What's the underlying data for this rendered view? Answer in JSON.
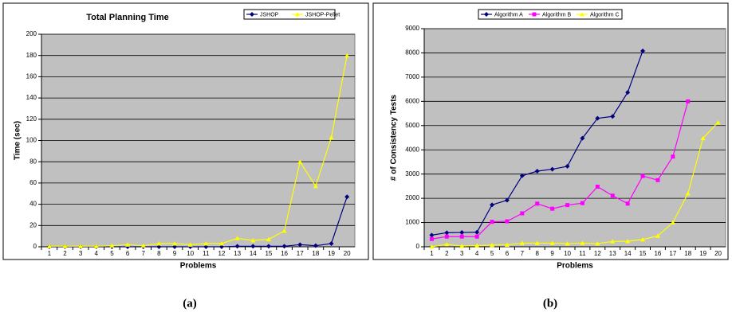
{
  "chart_data": [
    {
      "type": "line",
      "title": "Total Planning Time",
      "x_label": "Problems",
      "y_label": "Time (sec)",
      "categories": [
        "1",
        "2",
        "3",
        "4",
        "5",
        "6",
        "7",
        "8",
        "9",
        "10",
        "11",
        "12",
        "13",
        "14",
        "15",
        "16",
        "17",
        "18",
        "19",
        "20"
      ],
      "ylim": [
        0,
        200
      ],
      "yticks": [
        0,
        20,
        40,
        60,
        80,
        100,
        120,
        140,
        160,
        180,
        200
      ],
      "grid": true,
      "background": "#c0c0c0",
      "series": [
        {
          "name": "JSHOP",
          "color": "#000080",
          "marker": "diamond",
          "values": [
            0,
            0,
            0,
            0,
            0,
            0,
            0,
            0,
            0,
            0,
            0,
            0,
            0.5,
            0.5,
            0.5,
            0.5,
            2,
            1,
            3,
            47
          ]
        },
        {
          "name": "JSHOP-Pellet",
          "color": "#ffff00",
          "marker": "triangle",
          "values": [
            0.5,
            0.5,
            0.5,
            0.5,
            1,
            2,
            1,
            3,
            3,
            2,
            3,
            3,
            8,
            6,
            7,
            15,
            80,
            57,
            103,
            180
          ]
        }
      ],
      "caption": "(a)"
    },
    {
      "type": "line",
      "x_label": "Problems",
      "y_label": "# of Consistency Tests",
      "categories": [
        "1",
        "2",
        "3",
        "4",
        "5",
        "6",
        "7",
        "8",
        "9",
        "10",
        "11",
        "12",
        "13",
        "14",
        "15",
        "16",
        "17",
        "18",
        "19",
        "20"
      ],
      "ylim": [
        0,
        9000
      ],
      "yticks": [
        0,
        1000,
        2000,
        3000,
        4000,
        5000,
        6000,
        7000,
        8000,
        9000
      ],
      "grid": true,
      "background": "#c0c0c0",
      "series": [
        {
          "name": "Algorithm A",
          "color": "#000080",
          "marker": "diamond",
          "values": [
            480,
            580,
            590,
            600,
            1730,
            1920,
            2930,
            3120,
            3200,
            3320,
            4480,
            5300,
            5380,
            6370,
            8080,
            null,
            null,
            null,
            null,
            null
          ]
        },
        {
          "name": "Algorithm B",
          "color": "#ff00ff",
          "marker": "square",
          "values": [
            320,
            420,
            420,
            420,
            1030,
            1050,
            1380,
            1780,
            1570,
            1720,
            1800,
            2480,
            2110,
            1780,
            2920,
            2750,
            3720,
            6000,
            null,
            null
          ]
        },
        {
          "name": "Algorithm C",
          "color": "#ffff00",
          "marker": "triangle",
          "values": [
            0,
            100,
            30,
            50,
            70,
            80,
            150,
            150,
            150,
            130,
            150,
            130,
            220,
            230,
            300,
            450,
            1000,
            2200,
            4480,
            5130
          ]
        }
      ],
      "caption": "(b)"
    }
  ]
}
